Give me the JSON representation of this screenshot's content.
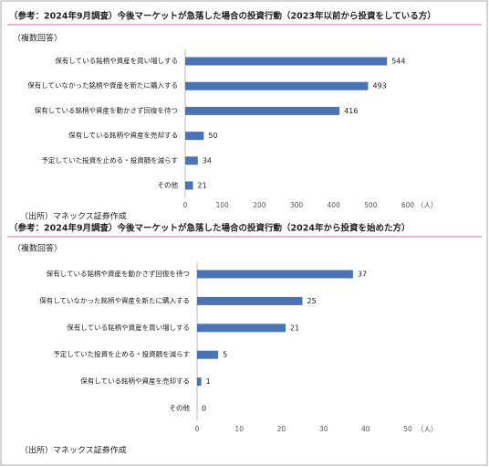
{
  "chart_data": [
    {
      "type": "bar",
      "orientation": "horizontal",
      "title": "（参考：2024年9月調査）今後マーケットが急落した場合の投資行動（2023年以前から投資をしている方）",
      "subtitle": "（複数回答）",
      "source": "（出所）マネックス証券作成",
      "x_unit": "（人）",
      "categories": [
        "保有している銘柄や資産を買い増しする",
        "保有していなかった銘柄や資産を新たに購入する",
        "保有している銘柄や資産を動かさず回復を待つ",
        "保有している銘柄や資産を売却する",
        "予定していた投資を止める・投資額を減らす",
        "その他"
      ],
      "values": [
        544,
        493,
        416,
        50,
        34,
        21
      ],
      "color": "#4a74b4",
      "xlim": [
        0,
        600
      ],
      "xticks": [
        0,
        100,
        200,
        300,
        400,
        500,
        600
      ],
      "grid": false
    },
    {
      "type": "bar",
      "orientation": "horizontal",
      "title": "（参考：2024年9月調査）今後マーケットが急落した場合の投資行動（2024年から投資を始めた方）",
      "subtitle": "（複数回答）",
      "source": "（出所）マネックス証券作成",
      "x_unit": "（人）",
      "categories": [
        "保有している銘柄や資産を動かさず回復を待つ",
        "保有していなかった銘柄や資産を新たに購入する",
        "保有している銘柄や資産を買い増しする",
        "予定していた投資を止める・投資額を減らす",
        "保有している銘柄や資産を売却する",
        "その他"
      ],
      "values": [
        37,
        25,
        21,
        5,
        1,
        0
      ],
      "color": "#4a74b4",
      "xlim": [
        0,
        50
      ],
      "xticks": [
        0,
        10,
        20,
        30,
        40,
        50
      ],
      "grid": false
    }
  ]
}
